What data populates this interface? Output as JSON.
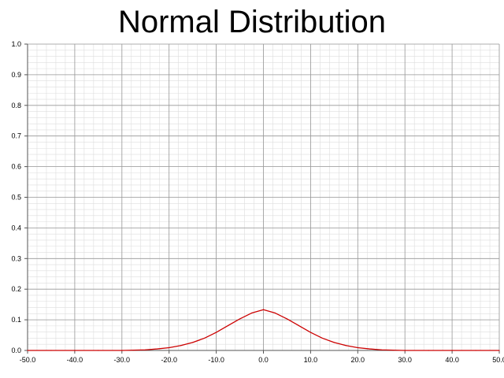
{
  "chart_data": {
    "type": "line",
    "title": "Normal Distribution",
    "xlabel": "",
    "ylabel": "",
    "xlim": [
      -50,
      50
    ],
    "ylim": [
      0,
      1
    ],
    "x_ticks": [
      "-50.0",
      "-40.0",
      "-30.0",
      "-20.0",
      "-10.0",
      "0.0",
      "10.0",
      "20.0",
      "30.0",
      "40.0",
      "50.0"
    ],
    "y_ticks": [
      "0.0",
      "0.1",
      "0.2",
      "0.3",
      "0.4",
      "0.5",
      "0.6",
      "0.7",
      "0.8",
      "0.9",
      "1.0"
    ],
    "grid": true,
    "legend": "none",
    "series": [
      {
        "color": "#cc0000",
        "x": [
          -50,
          -45,
          -40,
          -35,
          -30,
          -27.5,
          -25,
          -22.5,
          -20,
          -17.5,
          -15,
          -12.5,
          -10,
          -7.5,
          -5,
          -2.5,
          0,
          2.5,
          5,
          7.5,
          10,
          12.5,
          15,
          17.5,
          20,
          22.5,
          25,
          27.5,
          30,
          35,
          40,
          45,
          50
        ],
        "y": [
          0.0,
          0.0,
          0.0,
          0.0,
          0.0,
          0.001,
          0.002,
          0.005,
          0.009,
          0.016,
          0.026,
          0.04,
          0.059,
          0.081,
          0.103,
          0.122,
          0.133,
          0.122,
          0.103,
          0.081,
          0.059,
          0.04,
          0.026,
          0.016,
          0.009,
          0.005,
          0.002,
          0.001,
          0.0,
          0.0,
          0.0,
          0.0,
          0.0
        ]
      }
    ]
  },
  "colors": {
    "background": "#ffffff",
    "minor_grid": "#dddddd",
    "major_grid": "#999999",
    "axis": "#555555",
    "curve": "#cc0000"
  }
}
